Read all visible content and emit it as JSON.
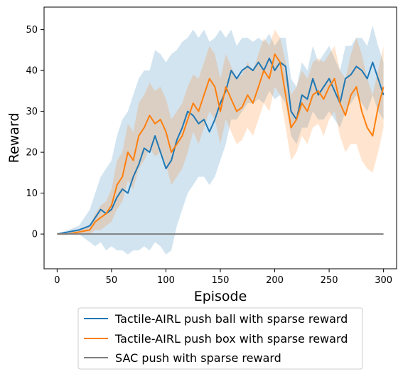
{
  "chart_data": {
    "type": "line",
    "xlabel": "Episode",
    "ylabel": "Reward",
    "xlim": [
      -12,
      312
    ],
    "ylim": [
      -8.5,
      55.5
    ],
    "xticks": [
      0,
      50,
      100,
      150,
      200,
      250,
      300
    ],
    "yticks": [
      0,
      10,
      20,
      30,
      40,
      50
    ],
    "legend_position": "bottom-outside",
    "series": [
      {
        "name": "Tactile-AIRL push ball with sparse reward",
        "color": "#1f77b4",
        "band_opacity": 0.2,
        "x": [
          0,
          10,
          20,
          30,
          35,
          40,
          45,
          50,
          55,
          60,
          65,
          70,
          75,
          80,
          85,
          90,
          95,
          100,
          105,
          110,
          115,
          120,
          125,
          130,
          135,
          140,
          145,
          150,
          155,
          160,
          165,
          170,
          175,
          180,
          185,
          190,
          195,
          200,
          205,
          210,
          215,
          220,
          225,
          230,
          235,
          240,
          245,
          250,
          255,
          260,
          265,
          270,
          275,
          280,
          285,
          290,
          295,
          300
        ],
        "mean": [
          0,
          0.5,
          1,
          2,
          4,
          6,
          5,
          6,
          9,
          11,
          10,
          14,
          17,
          21,
          20,
          24,
          20,
          16,
          18,
          23,
          26,
          30,
          29,
          27,
          28,
          25,
          28,
          32,
          35,
          40,
          38,
          40,
          41,
          40,
          42,
          40,
          43,
          40,
          42,
          41,
          30,
          28,
          34,
          33,
          38,
          34,
          36,
          38,
          35,
          32,
          38,
          39,
          41,
          40,
          38,
          42,
          38,
          34
        ],
        "lower": [
          0,
          0,
          0,
          -2,
          -3,
          -2,
          -4,
          -3,
          -4,
          -4,
          -5,
          -4,
          -4,
          -3,
          -4,
          -2,
          -3,
          -5,
          -4,
          2,
          6,
          10,
          12,
          14,
          14,
          12,
          14,
          18,
          22,
          28,
          28,
          30,
          32,
          32,
          33,
          32,
          35,
          33,
          34,
          32,
          24,
          22,
          26,
          26,
          30,
          28,
          28,
          30,
          28,
          26,
          30,
          32,
          34,
          32,
          30,
          34,
          30,
          28
        ],
        "upper": [
          0,
          1,
          2,
          6,
          10,
          14,
          16,
          18,
          24,
          28,
          30,
          34,
          38,
          40,
          40,
          45,
          44,
          42,
          44,
          45,
          47,
          48,
          50,
          48,
          50,
          47,
          48,
          50,
          48,
          50,
          46,
          48,
          48,
          47,
          48,
          47,
          49,
          46,
          48,
          48,
          38,
          36,
          42,
          40,
          46,
          42,
          44,
          46,
          43,
          40,
          46,
          46,
          48,
          48,
          46,
          51,
          46,
          42
        ]
      },
      {
        "name": "Tactile-AIRL push box with sparse reward",
        "color": "#ff7f0e",
        "band_opacity": 0.2,
        "x": [
          0,
          10,
          20,
          30,
          35,
          40,
          45,
          50,
          55,
          60,
          65,
          70,
          75,
          80,
          85,
          90,
          95,
          100,
          105,
          110,
          115,
          120,
          125,
          130,
          135,
          140,
          145,
          150,
          155,
          160,
          165,
          170,
          175,
          180,
          185,
          190,
          195,
          200,
          205,
          210,
          215,
          220,
          225,
          230,
          235,
          240,
          245,
          250,
          255,
          260,
          265,
          270,
          275,
          280,
          285,
          290,
          295,
          300
        ],
        "mean": [
          0,
          0,
          0.5,
          1,
          3,
          4,
          5,
          7,
          12,
          14,
          20,
          18,
          24,
          26,
          29,
          27,
          28,
          25,
          20,
          22,
          24,
          28,
          32,
          30,
          34,
          38,
          36,
          30,
          36,
          33,
          30,
          31,
          34,
          32,
          36,
          40,
          38,
          44,
          42,
          34,
          26,
          28,
          32,
          30,
          34,
          35,
          33,
          36,
          38,
          32,
          29,
          34,
          36,
          30,
          26,
          24,
          31,
          36
        ],
        "lower": [
          0,
          0,
          0,
          0,
          1,
          1,
          2,
          3,
          6,
          8,
          13,
          11,
          16,
          18,
          21,
          19,
          20,
          17,
          12,
          14,
          16,
          20,
          25,
          22,
          26,
          30,
          28,
          22,
          28,
          25,
          22,
          23,
          26,
          24,
          28,
          32,
          30,
          36,
          34,
          26,
          18,
          20,
          24,
          22,
          26,
          27,
          24,
          28,
          30,
          24,
          20,
          22,
          22,
          18,
          16,
          15,
          20,
          26
        ],
        "upper": [
          0,
          0,
          1,
          2,
          5,
          7,
          8,
          11,
          18,
          20,
          27,
          25,
          32,
          34,
          37,
          35,
          36,
          33,
          28,
          30,
          32,
          36,
          39,
          38,
          42,
          46,
          44,
          38,
          44,
          41,
          38,
          39,
          42,
          40,
          44,
          48,
          46,
          50,
          48,
          42,
          34,
          36,
          40,
          38,
          42,
          43,
          42,
          44,
          46,
          40,
          38,
          44,
          48,
          44,
          38,
          34,
          40,
          46
        ]
      },
      {
        "name": "SAC push with sparse reward",
        "color": "#7f7f7f",
        "band_opacity": 0,
        "x": [
          0,
          300
        ],
        "mean": [
          0,
          0
        ],
        "lower": [
          0,
          0
        ],
        "upper": [
          0,
          0
        ]
      }
    ]
  }
}
